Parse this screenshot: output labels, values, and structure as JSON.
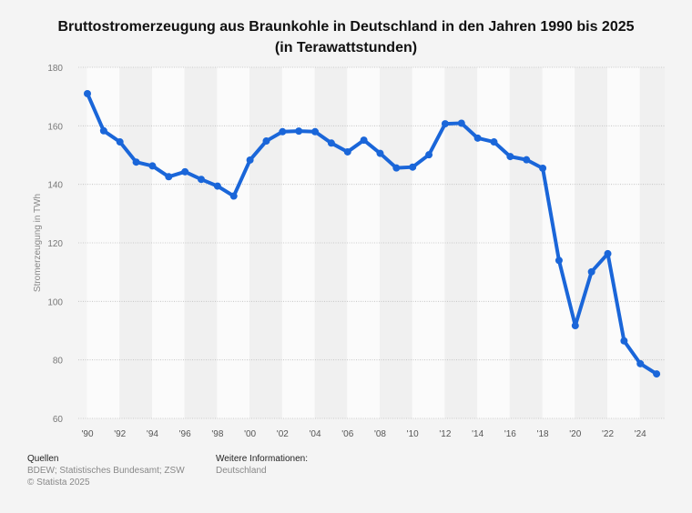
{
  "chart_data": {
    "type": "line",
    "title": "Bruttostromerzeugung aus Braunkohle in Deutschland in den Jahren 1990 bis 2025 (in Terawattstunden)",
    "xlabel": "",
    "ylabel": "Stromerzeugung in TWh",
    "ylim": [
      60,
      180
    ],
    "yticks": [
      60,
      80,
      100,
      120,
      140,
      160,
      180
    ],
    "xtick_labels": [
      "'90",
      "'92",
      "'94",
      "'96",
      "'98",
      "'00",
      "'02",
      "'04",
      "'06",
      "'08",
      "'10",
      "'12",
      "'14",
      "'16",
      "'18",
      "'20",
      "'22",
      "'24"
    ],
    "grid": true,
    "color": "#1a66d9",
    "x": [
      1990,
      1991,
      1992,
      1993,
      1994,
      1995,
      1996,
      1997,
      1998,
      1999,
      2000,
      2001,
      2002,
      2003,
      2004,
      2005,
      2006,
      2007,
      2008,
      2009,
      2010,
      2011,
      2012,
      2013,
      2014,
      2015,
      2016,
      2017,
      2018,
      2019,
      2020,
      2021,
      2022,
      2023,
      2024,
      2025
    ],
    "values": [
      171,
      158.3,
      154.5,
      147.6,
      146.3,
      142.6,
      144.3,
      141.7,
      139.4,
      136,
      148.3,
      154.8,
      158,
      158.2,
      158,
      154.1,
      151.1,
      155.1,
      150.6,
      145.6,
      145.9,
      150.1,
      160.7,
      160.9,
      155.8,
      154.5,
      149.5,
      148.4,
      145.5,
      114,
      91.7,
      110.1,
      116.3,
      86.5,
      78.7,
      75.2
    ]
  },
  "footer": {
    "sources_heading": "Quellen",
    "sources": "BDEW; Statistisches Bundesamt; ZSW",
    "copyright": "© Statista 2025",
    "info_heading": "Weitere Informationen:",
    "info": "Deutschland"
  }
}
